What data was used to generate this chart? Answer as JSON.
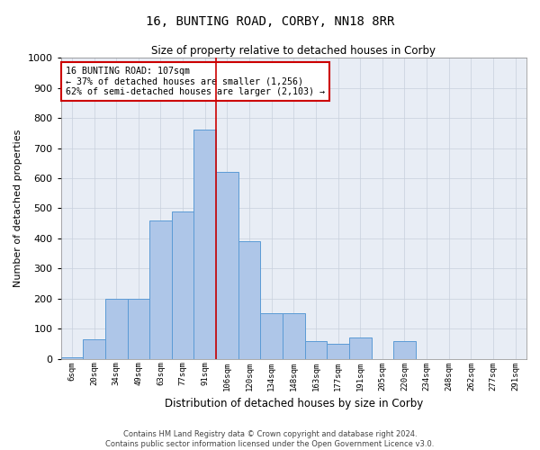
{
  "title": "16, BUNTING ROAD, CORBY, NN18 8RR",
  "subtitle": "Size of property relative to detached houses in Corby",
  "xlabel": "Distribution of detached houses by size in Corby",
  "ylabel": "Number of detached properties",
  "annotation_line1": "16 BUNTING ROAD: 107sqm",
  "annotation_line2": "← 37% of detached houses are smaller (1,256)",
  "annotation_line3": "62% of semi-detached houses are larger (2,103) →",
  "categories": [
    "6sqm",
    "20sqm",
    "34sqm",
    "49sqm",
    "63sqm",
    "77sqm",
    "91sqm",
    "106sqm",
    "120sqm",
    "134sqm",
    "148sqm",
    "163sqm",
    "177sqm",
    "191sqm",
    "205sqm",
    "220sqm",
    "234sqm",
    "248sqm",
    "262sqm",
    "277sqm",
    "291sqm"
  ],
  "values": [
    5,
    65,
    200,
    200,
    460,
    490,
    760,
    620,
    390,
    150,
    150,
    60,
    50,
    70,
    0,
    60,
    0,
    0,
    0,
    0,
    0
  ],
  "bar_color": "#aec6e8",
  "bar_edge_color": "#5b9bd5",
  "vline_color": "#cc0000",
  "vline_position": 6.5,
  "annotation_box_color": "#cc0000",
  "annotation_bg": "#ffffff",
  "ylim": [
    0,
    1000
  ],
  "yticks": [
    0,
    100,
    200,
    300,
    400,
    500,
    600,
    700,
    800,
    900,
    1000
  ],
  "grid_color": "#c8d0dc",
  "bg_color": "#e8edf5",
  "footer_line1": "Contains HM Land Registry data © Crown copyright and database right 2024.",
  "footer_line2": "Contains public sector information licensed under the Open Government Licence v3.0."
}
